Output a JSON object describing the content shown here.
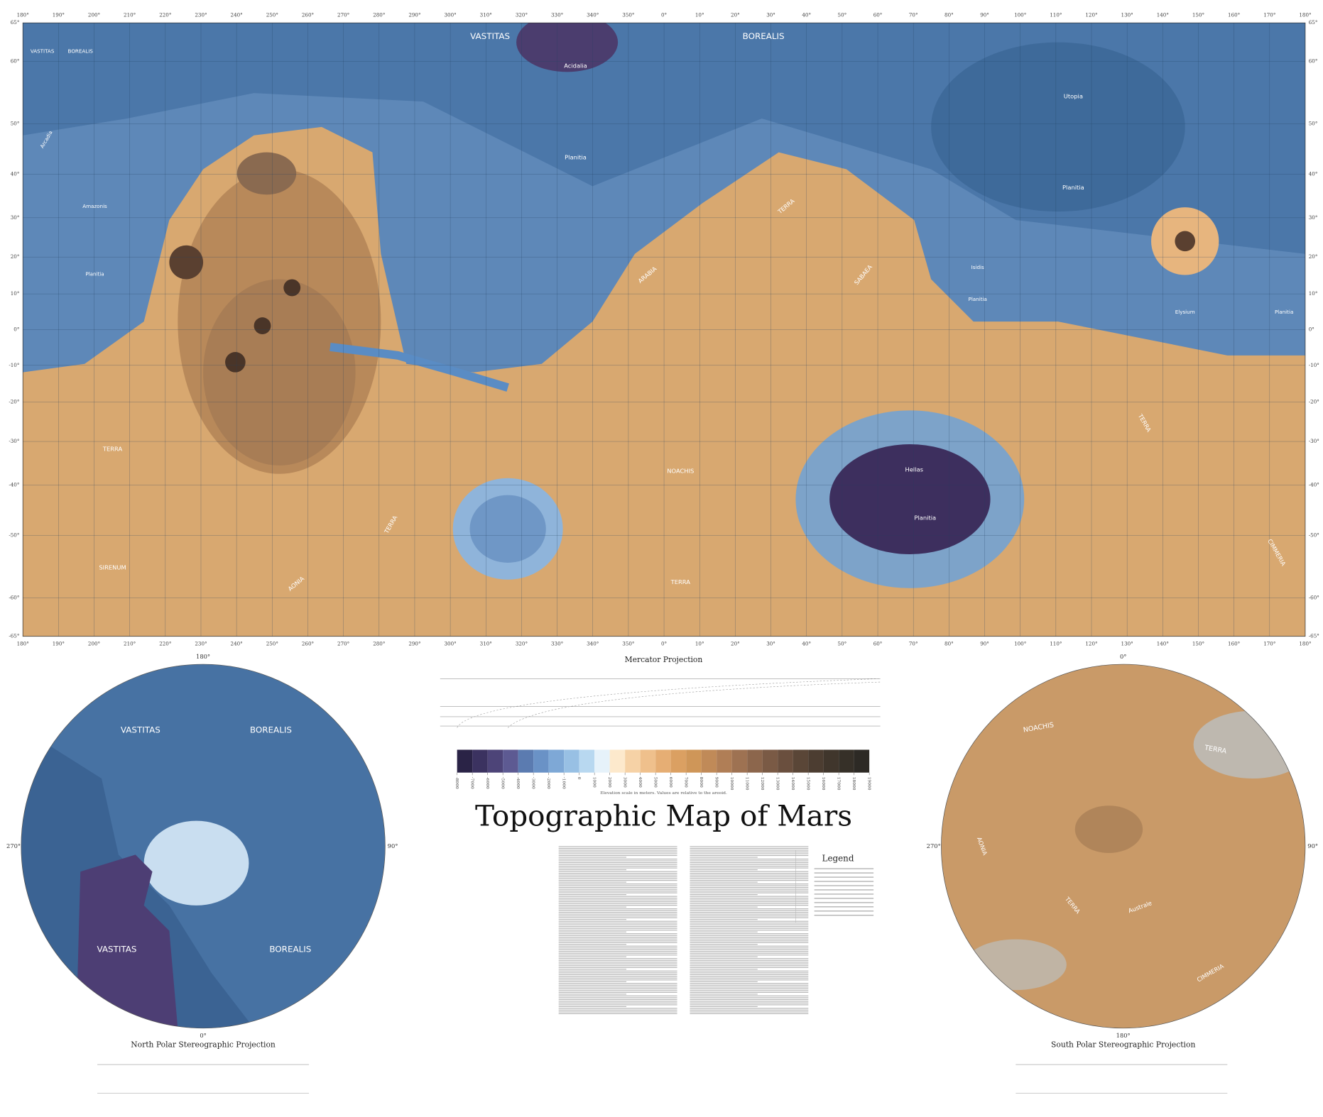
{
  "title": "Topographic Map of Mars",
  "map": {
    "lon_labels": [
      "180°",
      "190°",
      "200°",
      "210°",
      "220°",
      "230°",
      "240°",
      "250°",
      "260°",
      "270°",
      "280°",
      "290°",
      "300°",
      "310°",
      "320°",
      "330°",
      "340°",
      "350°",
      "0°",
      "10°",
      "20°",
      "30°",
      "40°",
      "50°",
      "60°",
      "70°",
      "80°",
      "90°",
      "100°",
      "110°",
      "120°",
      "130°",
      "140°",
      "150°",
      "160°",
      "170°",
      "180°"
    ],
    "lat_labels": [
      {
        "value": 65,
        "label": "65°"
      },
      {
        "value": 60,
        "label": "60°"
      },
      {
        "value": 50,
        "label": "50°"
      },
      {
        "value": 40,
        "label": "40°"
      },
      {
        "value": 30,
        "label": "30°"
      },
      {
        "value": 20,
        "label": "20°"
      },
      {
        "value": 10,
        "label": "10°"
      },
      {
        "value": 0,
        "label": "0°"
      },
      {
        "value": -10,
        "label": "-10°"
      },
      {
        "value": -20,
        "label": "-20°"
      },
      {
        "value": -30,
        "label": "-30°"
      },
      {
        "value": -40,
        "label": "-40°"
      },
      {
        "value": -50,
        "label": "-50°"
      },
      {
        "value": -60,
        "label": "-60°"
      },
      {
        "value": -65,
        "label": "-65°"
      }
    ],
    "place_names": [
      "VASTITAS",
      "BOREALIS",
      "VASTITAS",
      "BOREALIS",
      "Acidalia",
      "Planitia",
      "Utopia",
      "Planitia",
      "Amazonis",
      "Planitia",
      "Arcadia",
      "ARABIA",
      "TERRA",
      "SABAEA",
      "Isidis",
      "Planitia",
      "Elysium",
      "Planitia",
      "TERRA",
      "SIRENUM",
      "AONIA",
      "TERRA",
      "NOACHIS",
      "TERRA",
      "Hellas",
      "Planitia",
      "TERRA",
      "CIMMERIA"
    ]
  },
  "mercator": {
    "caption": "Mercator Projection"
  },
  "elevation": {
    "ticks": [
      -8000,
      -7000,
      -6000,
      -5000,
      -4000,
      -3000,
      -2000,
      -1000,
      0,
      1000,
      2000,
      3000,
      4000,
      5000,
      6000,
      7000,
      8000,
      9000,
      10000,
      11000,
      12000,
      13000,
      14000,
      15000,
      16000,
      17000,
      18000,
      19000
    ],
    "colors": [
      "#2a2346",
      "#3b3260",
      "#4d4478",
      "#5d5a92",
      "#5b7bb0",
      "#6a92c6",
      "#7ea8d6",
      "#98c0e4",
      "#b8d8f0",
      "#e6f2fa",
      "#fde9cc",
      "#f6d2a6",
      "#efc08c",
      "#e6ae74",
      "#dba062",
      "#cf9658",
      "#c08a58",
      "#b07e56",
      "#9e7252",
      "#8c664c",
      "#7a5a45",
      "#6a4f3e",
      "#5a4637",
      "#4c3d31",
      "#40362c",
      "#363028",
      "#2d2a25"
    ],
    "caption": "Elevation scale in meters. Values are relative to the areoid."
  },
  "legend": {
    "title": "Legend"
  },
  "north_polar": {
    "caption": "North Polar Stereographic Projection",
    "place_names": [
      "VASTITAS",
      "BOREALIS",
      "VASTITAS",
      "BOREALIS"
    ],
    "angle_labels": [
      "180°",
      "90°",
      "0°",
      "270°"
    ]
  },
  "south_polar": {
    "caption": "South Polar Stereographic Projection",
    "place_names": [
      "NOACHIS",
      "TERRA",
      "AONIA",
      "Australe",
      "TERRA",
      "CIMMERIA"
    ],
    "angle_labels": [
      "0°",
      "90°",
      "180°",
      "270°"
    ]
  }
}
